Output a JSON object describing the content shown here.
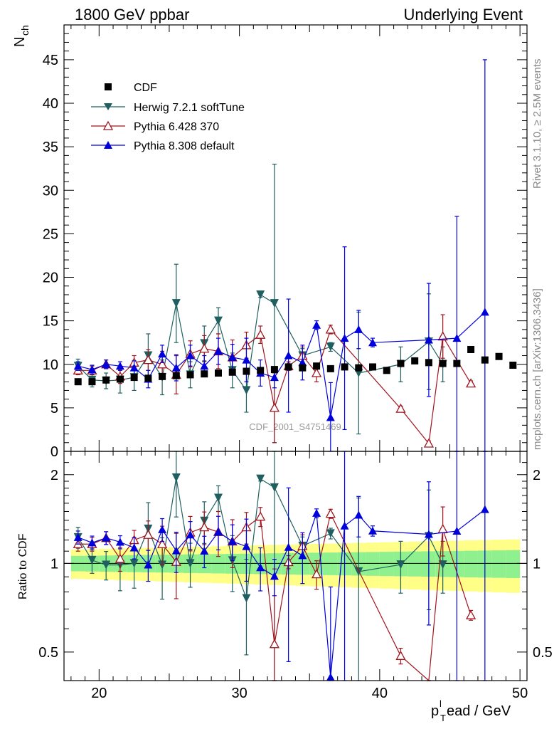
{
  "header": {
    "left": "1800 GeV ppbar",
    "right": "Underlying Event"
  },
  "side_labels": {
    "rivet": "Rivet 3.1.10, ≥ 2.5M events",
    "mcplots": "mcplots.cern.ch [arXiv:1306.3436]"
  },
  "watermark": "CDF_2001_S4751469",
  "legend": {
    "cdf": "CDF",
    "herwig": "Herwig 7.2.1 softTune",
    "p6": "Pythia 6.428 370",
    "p8": "Pythia 8.308 default"
  },
  "axes": {
    "ylabel_main": "N",
    "ylabel_main_sub": "ch",
    "ylabel_ratio": "Ratio to CDF",
    "xlabel_p": "p",
    "xlabel_sub": "T",
    "xlabel_sup": "l",
    "xlabel_rest": "ead / GeV"
  },
  "chart_data": {
    "type": "scatter",
    "x_range": [
      17.5,
      50.5
    ],
    "y_range_main": [
      0,
      49
    ],
    "y_range_ratio_log": [
      0.4,
      2.4
    ],
    "x_ticks": [
      20,
      30,
      40,
      50
    ],
    "y_ticks_main": [
      0,
      5,
      10,
      15,
      20,
      25,
      30,
      35,
      40,
      45
    ],
    "y_ticks_ratio": [
      0.5,
      1,
      2
    ],
    "colors": {
      "cdf": "#000000",
      "herwig": "#1f5f5f",
      "p6": "#a0141e",
      "p8": "#0000dd",
      "band_inner": "#8ff08f",
      "band_outer": "#ffff88"
    },
    "cdf": {
      "x": [
        18.5,
        19.5,
        20.5,
        21.5,
        22.5,
        23.5,
        24.5,
        25.5,
        26.5,
        27.5,
        28.5,
        29.5,
        30.5,
        31.5,
        32.5,
        33.5,
        34.5,
        35.5,
        36.5,
        37.5,
        38.5,
        39.5,
        40.5,
        41.5,
        42.5,
        43.5,
        44.5,
        45.5,
        46.5,
        47.5,
        48.5,
        49.5
      ],
      "y": [
        8.0,
        8.0,
        8.2,
        8.3,
        8.5,
        8.4,
        8.6,
        8.7,
        8.8,
        8.9,
        9.0,
        9.1,
        9.2,
        9.3,
        9.4,
        9.7,
        9.6,
        9.8,
        9.5,
        9.7,
        9.6,
        9.7,
        9.3,
        10.1,
        10.4,
        10.2,
        10.1,
        10.1,
        11.7,
        10.5,
        10.9,
        9.9
      ]
    },
    "herwig": {
      "x": [
        18.5,
        19.5,
        20.5,
        21.5,
        22.5,
        23.5,
        24.5,
        25.5,
        26.5,
        27.5,
        28.5,
        29.5,
        30.5,
        31.5,
        32.5,
        34.5,
        36.5,
        38.5,
        41.5,
        43.5,
        44.5
      ],
      "y": [
        9.8,
        8.2,
        8.1,
        8.2,
        8.5,
        11.0,
        8.5,
        17.0,
        8.8,
        12.4,
        15.0,
        9.3,
        7.0,
        18.0,
        17.0,
        11.0,
        12.0,
        9.0,
        10.0,
        12.6,
        10.0
      ],
      "err": [
        0.8,
        0.8,
        0.9,
        1.5,
        1.5,
        2.5,
        2.0,
        4.5,
        1.5,
        2.0,
        1.5,
        2.0,
        2.5,
        0.3,
        16.0,
        0.8,
        0.5,
        7.0,
        2.0,
        5.5,
        2.0
      ]
    },
    "p6": {
      "x": [
        18.5,
        19.5,
        20.5,
        21.5,
        22.5,
        23.5,
        24.5,
        25.5,
        26.5,
        27.5,
        28.5,
        29.5,
        30.5,
        31.5,
        32.5,
        33.5,
        34.5,
        35.5,
        36.5,
        41.5,
        43.5,
        44.5,
        46.5
      ],
      "y": [
        9.3,
        9.3,
        10.0,
        8.6,
        10.2,
        10.5,
        10.0,
        8.8,
        11.2,
        11.8,
        11.5,
        10.8,
        12.2,
        13.4,
        5.0,
        9.8,
        11.0,
        9.0,
        14.0,
        4.9,
        0.9,
        13.2,
        7.8
      ],
      "err": [
        0.5,
        0.5,
        0.5,
        0.8,
        0.8,
        1.2,
        1.5,
        2.2,
        1.5,
        1.5,
        2.0,
        2.0,
        1.5,
        1.0,
        4.0,
        0.5,
        1.0,
        1.0,
        0.5,
        0.3,
        0.3,
        2.5,
        0.3
      ]
    },
    "p8": {
      "x": [
        18.5,
        19.5,
        20.5,
        21.5,
        22.5,
        23.5,
        24.5,
        25.5,
        26.5,
        27.5,
        28.5,
        29.5,
        30.5,
        31.5,
        32.5,
        33.5,
        34.5,
        35.5,
        36.5,
        37.5,
        38.5,
        39.5,
        43.5,
        45.5,
        47.5
      ],
      "y": [
        9.8,
        9.4,
        10.0,
        9.8,
        9.6,
        8.3,
        11.2,
        9.6,
        11.0,
        9.8,
        11.5,
        10.8,
        10.5,
        9.0,
        8.5,
        11.0,
        10.2,
        14.5,
        3.9,
        13.0,
        14.0,
        12.5,
        12.8,
        13.0,
        16.0
      ],
      "err": [
        0.5,
        0.5,
        0.5,
        0.5,
        0.8,
        1.0,
        1.0,
        1.5,
        1.2,
        1.2,
        1.5,
        1.5,
        2.5,
        1.5,
        1.2,
        6.5,
        2.0,
        0.5,
        4.0,
        10.5,
        2.2,
        0.5,
        6.5,
        14.0,
        29.0
      ]
    }
  }
}
